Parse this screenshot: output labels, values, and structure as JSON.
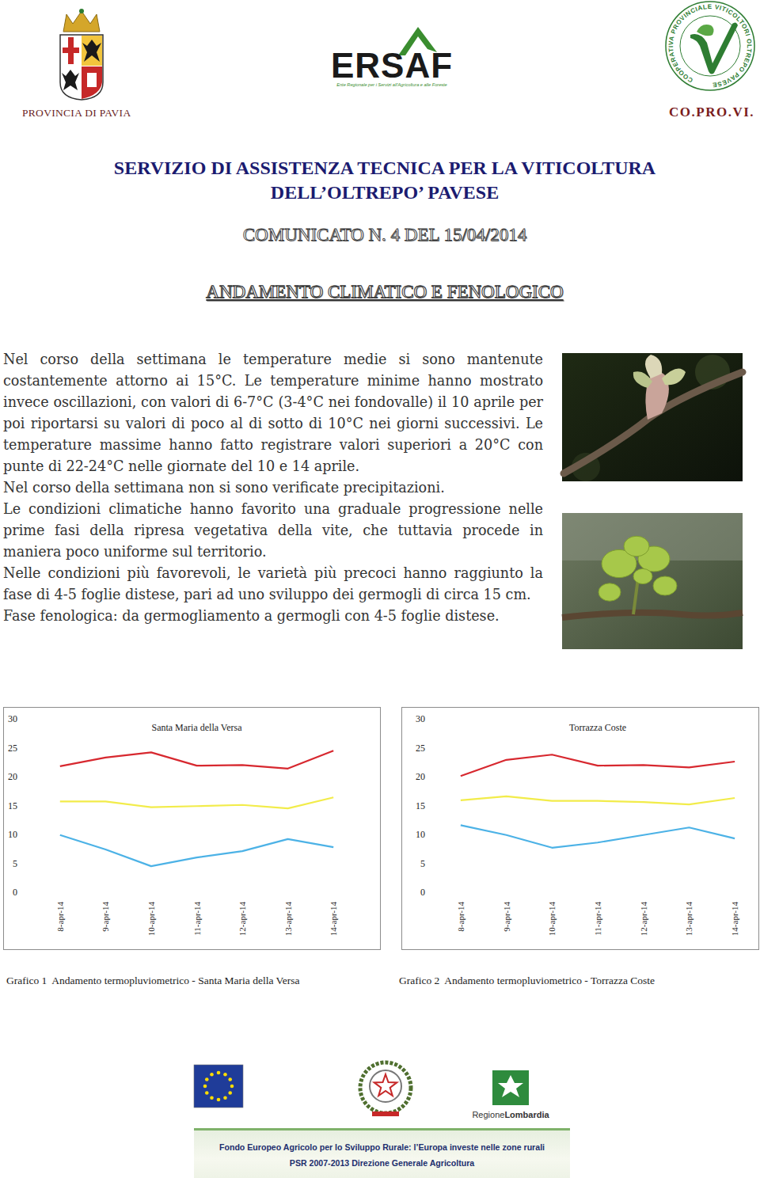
{
  "header": {
    "left_label": "PROVINCIA DI PAVIA",
    "ersaf": "ERSAF",
    "ersaf_subtitle": "Ente Regionale per i Servizi all'Agricoltura e alle Foreste",
    "copro_ring": "COOPERATIVA PROVINCIALE VITICOLTORI OLTREPO PAVESE",
    "right_label": "CO.PRO.VI."
  },
  "title": [
    "SERVIZIO DI ASSISTENZA TECNICA PER LA VITICOLTURA",
    "DELL’OLTREPO’ PAVESE"
  ],
  "bulletin": "COMUNICATO N. 4 DEL 15/04/2014",
  "section": "ANDAMENTO CLIMATICO E FENOLOGICO",
  "paragraphs": [
    "Nel corso della settimana le temperature medie si sono mantenute costantemente attorno ai 15°C. Le temperature minime hanno mostrato invece oscillazioni, con valori di 6-7°C (3-4°C nei fondovalle) il 10 aprile per poi riportarsi su valori di poco al di sotto di 10°C nei giorni successivi. Le temperature massime hanno fatto registrare valori superiori a 20°C con punte di 22-24°C nelle giornate del 10 e 14 aprile.",
    "Nel corso della settimana non si sono verificate precipitazioni.",
    "Le condizioni climatiche hanno favorito una graduale progressione nelle prime fasi della ripresa vegetativa della vite, che tuttavia procede in maniera poco uniforme sul territorio.",
    "Nelle condizioni più favorevoli, le varietà più precoci hanno raggiunto la fase di 4-5 foglie distese, pari ad uno sviluppo dei germogli di circa 15 cm.",
    "Fase fenologica: da germogliamento a germogli con 4-5 foglie distese."
  ],
  "chart_data": [
    {
      "type": "line",
      "title": "Santa Maria della Versa",
      "categories": [
        "8-apr-14",
        "9-apr-14",
        "10-apr-14",
        "11-apr-14",
        "12-apr-14",
        "13-apr-14",
        "14-apr-14"
      ],
      "ylim": [
        0,
        30
      ],
      "yticks": [
        0,
        5,
        10,
        15,
        20,
        25,
        30
      ],
      "grid": false,
      "series": [
        {
          "color": "#d7282f",
          "values": [
            21.8,
            23.3,
            24.2,
            21.9,
            22.0,
            21.4,
            24.5
          ]
        },
        {
          "color": "#f2ec4a",
          "values": [
            15.7,
            15.7,
            14.7,
            14.9,
            15.1,
            14.5,
            16.4
          ]
        },
        {
          "color": "#4cb2e6",
          "values": [
            9.9,
            7.4,
            4.5,
            6.0,
            7.1,
            9.2,
            7.8
          ]
        }
      ]
    },
    {
      "type": "line",
      "title": "Torrazza Coste",
      "categories": [
        "8-apr-14",
        "9-apr-14",
        "10-apr-14",
        "11-apr-14",
        "12-apr-14",
        "13-apr-14",
        "14-apr-14"
      ],
      "ylim": [
        0,
        30
      ],
      "yticks": [
        0,
        5,
        10,
        15,
        20,
        25,
        30
      ],
      "grid": false,
      "series": [
        {
          "color": "#d7282f",
          "values": [
            20.1,
            22.9,
            23.8,
            21.9,
            22.0,
            21.6,
            22.6
          ]
        },
        {
          "color": "#f2ec4a",
          "values": [
            15.9,
            16.6,
            15.8,
            15.8,
            15.6,
            15.2,
            16.3
          ]
        },
        {
          "color": "#4cb2e6",
          "values": [
            11.6,
            9.9,
            7.7,
            8.6,
            9.9,
            11.2,
            9.3
          ]
        }
      ]
    }
  ],
  "captions": [
    "Grafico 1  Andamento termopluviometrico - Santa Maria della Versa",
    "Grafico 2  Andamento termopluviometrico - Torrazza Coste"
  ],
  "footer": {
    "region_prefix": "Regione",
    "region_name": "Lombardia",
    "banner": [
      "Fondo Europeo Agricolo per lo Sviluppo Rurale: l’Europa investe nelle zone rurali",
      "PSR 2007-2013 Direzione Generale Agricoltura"
    ]
  }
}
